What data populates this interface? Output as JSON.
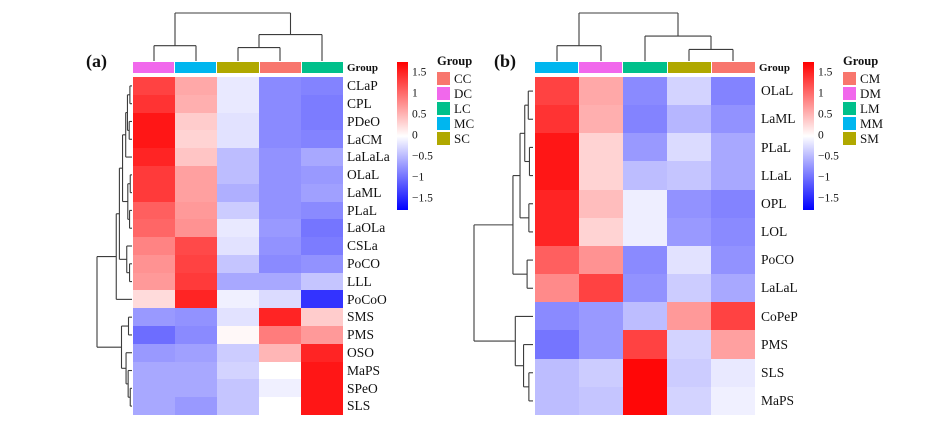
{
  "colormap": {
    "vmax": 1.75,
    "high": "#FF0000",
    "mid": "#FFFFFF",
    "low": "#0000FF"
  },
  "colorbar_ticks": [
    {
      "label": "1.5",
      "value": 1.5
    },
    {
      "label": "1",
      "value": 1.0
    },
    {
      "label": "0.5",
      "value": 0.5
    },
    {
      "label": "0",
      "value": 0.0
    },
    {
      "label": "−0.5",
      "value": -0.5
    },
    {
      "label": "−1",
      "value": -1.0
    },
    {
      "label": "−1.5",
      "value": -1.5
    }
  ],
  "chart_data": [
    {
      "type": "heatmap",
      "panel_label": "(a)",
      "annotation_title": "Group",
      "legend_title": "Group",
      "legend": [
        {
          "name": "CC",
          "color": "#F8766D"
        },
        {
          "name": "DC",
          "color": "#F168EC"
        },
        {
          "name": "LC",
          "color": "#00C08B"
        },
        {
          "name": "MC",
          "color": "#00B6EF"
        },
        {
          "name": "SC",
          "color": "#B0A800"
        }
      ],
      "column_groups": [
        "DC",
        "MC",
        "SC",
        "CC",
        "LC"
      ],
      "rows": [
        "CLaP",
        "CPL",
        "PDeO",
        "LaCM",
        "LaLaLa",
        "OLaL",
        "LaML",
        "PLaL",
        "LaOLa",
        "CSLa",
        "PoCO",
        "LLL",
        "PoCoO",
        "SMS",
        "PMS",
        "OSO",
        "MaPS",
        "SPeO",
        "SLS"
      ],
      "values": [
        [
          1.3,
          0.6,
          -0.15,
          -0.8,
          -0.85
        ],
        [
          1.4,
          0.55,
          -0.15,
          -0.8,
          -0.9
        ],
        [
          1.6,
          0.35,
          -0.2,
          -0.8,
          -0.9
        ],
        [
          1.6,
          0.3,
          -0.2,
          -0.8,
          -0.85
        ],
        [
          1.5,
          0.4,
          -0.45,
          -0.75,
          -0.6
        ],
        [
          1.35,
          0.65,
          -0.45,
          -0.75,
          -0.7
        ],
        [
          1.35,
          0.65,
          -0.55,
          -0.75,
          -0.65
        ],
        [
          1.1,
          0.7,
          -0.35,
          -0.75,
          -0.8
        ],
        [
          1.05,
          0.75,
          -0.15,
          -0.7,
          -0.95
        ],
        [
          0.85,
          1.25,
          -0.2,
          -0.75,
          -0.9
        ],
        [
          0.75,
          1.3,
          -0.4,
          -0.8,
          -0.75
        ],
        [
          0.7,
          1.35,
          -0.6,
          -0.6,
          -0.4
        ],
        [
          0.25,
          1.5,
          -0.1,
          -0.25,
          -1.4
        ],
        [
          -0.7,
          -0.75,
          -0.2,
          1.5,
          0.35
        ],
        [
          -1.0,
          -0.8,
          0.05,
          0.9,
          0.7
        ],
        [
          -0.7,
          -0.65,
          -0.35,
          0.5,
          1.5
        ],
        [
          -0.6,
          -0.6,
          -0.3,
          0.0,
          1.6
        ],
        [
          -0.6,
          -0.6,
          -0.4,
          -0.1,
          1.6
        ],
        [
          -0.6,
          -0.7,
          -0.4,
          0.0,
          1.6
        ]
      ],
      "col_tree": {
        "h": 1.0,
        "c": [
          {
            "h": 0.32,
            "c": [
              0,
              1
            ]
          },
          {
            "h": 0.55,
            "c": [
              {
                "h": 0.28,
                "c": [
                  2,
                  3
                ]
              },
              4
            ]
          }
        ]
      },
      "row_tree": {
        "h": 1.0,
        "c": [
          {
            "h": 0.45,
            "c": [
              {
                "h": 0.36,
                "c": [
                  {
                    "h": 0.27,
                    "c": [
                      {
                        "h": 0.18,
                        "c": [
                          {
                            "h": 0.13,
                            "c": [
                              {
                                "h": 0.06,
                                "c": [
                                  0,
                                  1
                                ]
                              },
                              {
                                "h": 0.08,
                                "c": [
                                  2,
                                  3
                                ]
                              }
                            ]
                          },
                          4
                        ]
                      },
                      {
                        "h": 0.12,
                        "c": [
                          {
                            "h": 0.05,
                            "c": [
                              5,
                              6
                            ]
                          },
                          {
                            "h": 0.07,
                            "c": [
                              7,
                              8
                            ]
                          }
                        ]
                      }
                    ]
                  },
                  {
                    "h": 0.15,
                    "c": [
                      9,
                      {
                        "h": 0.07,
                        "c": [
                          10,
                          11
                        ]
                      }
                    ]
                  }
                ]
              },
              12
            ]
          },
          {
            "h": 0.3,
            "c": [
              {
                "h": 0.1,
                "c": [
                  13,
                  14
                ]
              },
              {
                "h": 0.17,
                "c": [
                  15,
                  {
                    "h": 0.11,
                    "c": [
                      16,
                      {
                        "h": 0.05,
                        "c": [
                          17,
                          18
                        ]
                      }
                    ]
                  }
                ]
              }
            ]
          }
        ]
      }
    },
    {
      "type": "heatmap",
      "panel_label": "(b)",
      "annotation_title": "Group",
      "legend_title": "Group",
      "legend": [
        {
          "name": "CM",
          "color": "#F8766D"
        },
        {
          "name": "DM",
          "color": "#F168EC"
        },
        {
          "name": "LM",
          "color": "#00C08B"
        },
        {
          "name": "MM",
          "color": "#00B6EF"
        },
        {
          "name": "SM",
          "color": "#B0A800"
        }
      ],
      "column_groups": [
        "MM",
        "DM",
        "LM",
        "SM",
        "CM"
      ],
      "rows": [
        "OLaL",
        "LaML",
        "PLaL",
        "LLaL",
        "OPL",
        "LOL",
        "PoCO",
        "LaLaL",
        "CoPeP",
        "PMS",
        "SLS",
        "MaPS"
      ],
      "values": [
        [
          1.3,
          0.6,
          -0.8,
          -0.3,
          -0.85
        ],
        [
          1.4,
          0.55,
          -0.85,
          -0.5,
          -0.75
        ],
        [
          1.6,
          0.3,
          -0.7,
          -0.25,
          -0.6
        ],
        [
          1.6,
          0.3,
          -0.45,
          -0.4,
          -0.6
        ],
        [
          1.5,
          0.45,
          -0.12,
          -0.75,
          -0.85
        ],
        [
          1.5,
          0.3,
          -0.12,
          -0.7,
          -0.8
        ],
        [
          1.1,
          0.75,
          -0.8,
          -0.2,
          -0.75
        ],
        [
          0.8,
          1.3,
          -0.75,
          -0.35,
          -0.6
        ],
        [
          -0.8,
          -0.7,
          -0.45,
          0.7,
          1.3
        ],
        [
          -0.95,
          -0.7,
          1.3,
          -0.3,
          0.65
        ],
        [
          -0.45,
          -0.35,
          1.7,
          -0.35,
          -0.15
        ],
        [
          -0.45,
          -0.4,
          1.7,
          -0.3,
          -0.1
        ]
      ],
      "col_tree": {
        "h": 1.0,
        "c": [
          {
            "h": 0.32,
            "c": [
              0,
              1
            ]
          },
          {
            "h": 0.52,
            "c": [
              2,
              {
                "h": 0.24,
                "c": [
                  3,
                  4
                ]
              }
            ]
          }
        ]
      },
      "row_tree": {
        "h": 1.0,
        "c": [
          {
            "h": 0.34,
            "c": [
              {
                "h": 0.22,
                "c": [
                  {
                    "h": 0.14,
                    "c": [
                      {
                        "h": 0.08,
                        "c": [
                          0,
                          1
                        ]
                      },
                      {
                        "h": 0.06,
                        "c": [
                          2,
                          3
                        ]
                      }
                    ]
                  },
                  {
                    "h": 0.07,
                    "c": [
                      4,
                      5
                    ]
                  }
                ]
              },
              {
                "h": 0.1,
                "c": [
                  6,
                  7
                ]
              }
            ]
          },
          {
            "h": 0.3,
            "c": [
              8,
              {
                "h": 0.16,
                "c": [
                  9,
                  {
                    "h": 0.07,
                    "c": [
                      10,
                      11
                    ]
                  }
                ]
              }
            ]
          }
        ]
      }
    }
  ]
}
